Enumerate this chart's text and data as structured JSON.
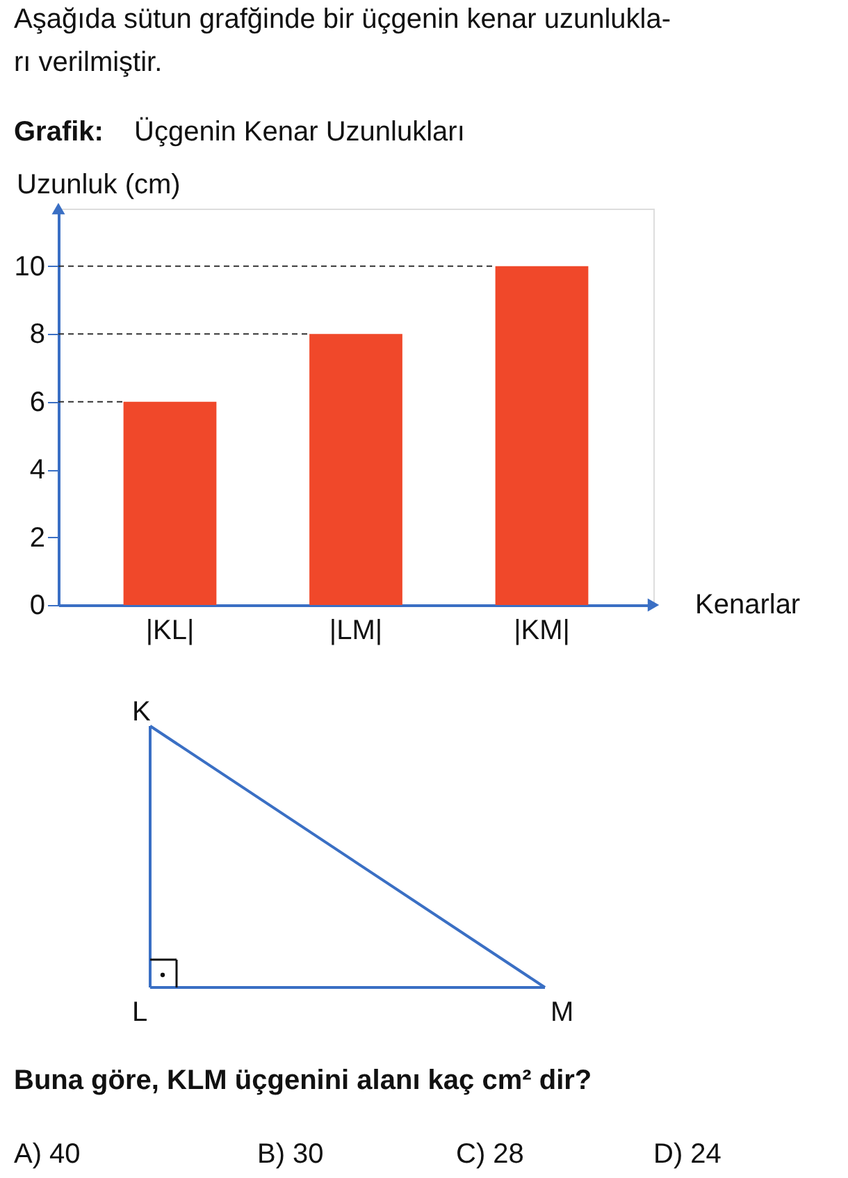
{
  "chart_data": {
    "type": "bar",
    "title": "Aşağıda sütun grafğinde bir üçgenin kenar uzunlukla-\nrı verilmiştir.",
    "subtitle": "Grafik: Üçgenin Kenar Uzunlukları",
    "ylabel": "Uzunluk (cm)",
    "xlabel": "Kenarlar",
    "categories": [
      "|KL|",
      "|LM|",
      "|KM|"
    ],
    "values": [
      6,
      8,
      10
    ],
    "color": "#f0482a",
    "ylim": [
      0,
      11.7
    ],
    "yticks": [
      0,
      2,
      4,
      6,
      8,
      10
    ],
    "grid": false,
    "ref_lines": [
      {
        "axis": "y",
        "value": 6,
        "line_style": "dashed"
      },
      {
        "axis": "y",
        "value": 8,
        "line_style": "dashed"
      },
      {
        "axis": "y",
        "value": 10,
        "line_style": "dashed"
      }
    ],
    "annotations": [
      "K",
      "L",
      "M",
      "Buna göre, KLM üçgenini alanı kaç cm² dir?",
      "A) 40",
      "B) 30",
      "C) 28",
      "D) 24"
    ]
  }
}
